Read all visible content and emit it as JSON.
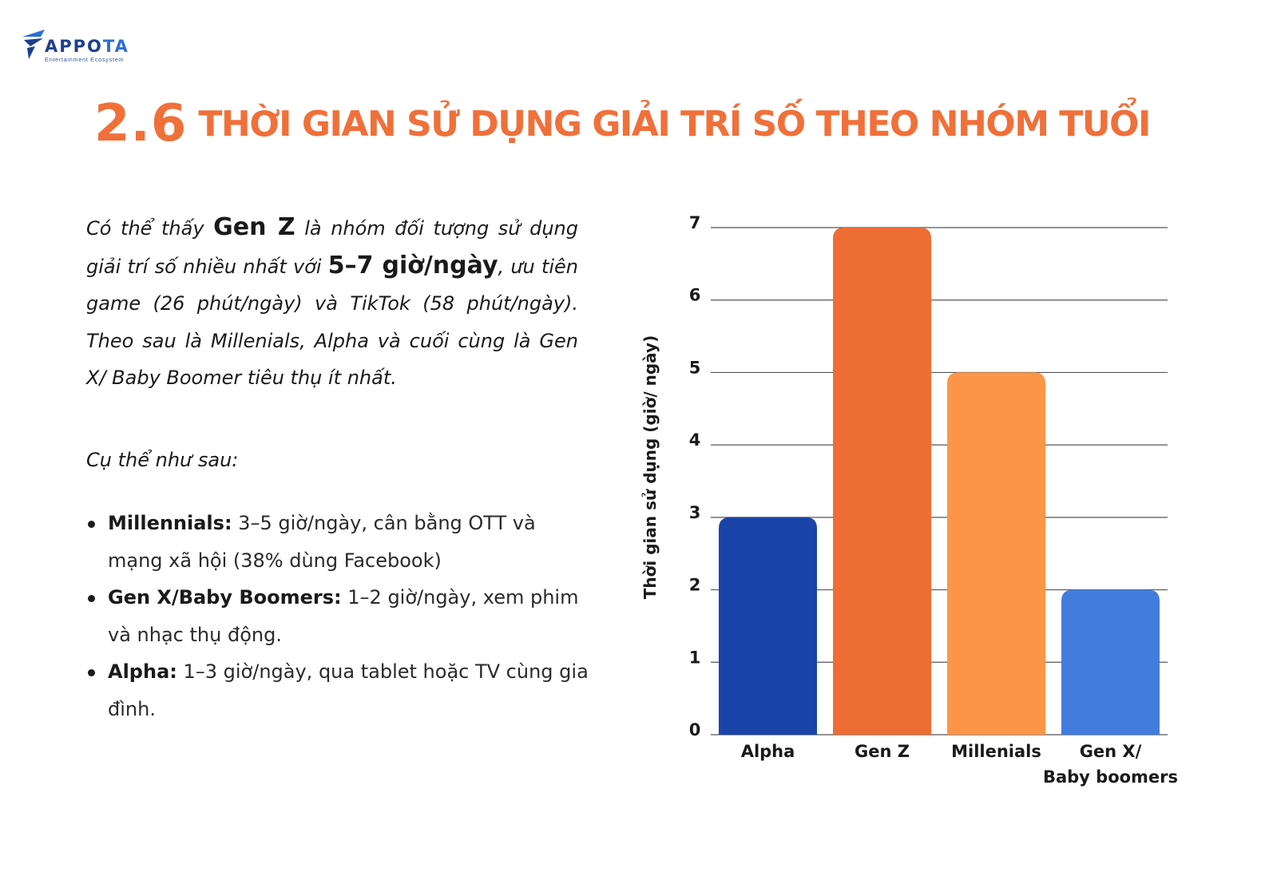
{
  "logo": {
    "wordmark_a": "APPO",
    "wordmark_b": "TA",
    "tagline": "Entertainment Ecosystem",
    "colors": {
      "dark": "#1e3f8f",
      "light": "#2d6fd6"
    }
  },
  "header": {
    "section_number": "2.6",
    "title": "THỜI GIAN SỬ DỤNG GIẢI TRÍ SỐ THEO NHÓM TUỔI",
    "color": "#f0703a"
  },
  "intro": {
    "p1": "Có thể thấy ",
    "gen_z": "Gen Z",
    "p2": " là nhóm đối tượng sử dụng giải trí số nhiều nhất với ",
    "hours": "5–7 giờ/ngày",
    "p3": ", ưu tiên game (26 phút/ngày) và TikTok (58 phút/ngày). Theo sau là Millenials, Alpha và cuối cùng là Gen X/ Baby Boomer tiêu thụ ít nhất."
  },
  "subhead": "Cụ thể như sau:",
  "bullets": [
    {
      "label": "Millennials:",
      "text": " 3–5 giờ/ngày, cân bằng OTT và mạng xã hội (38% dùng Facebook)"
    },
    {
      "label": "Gen X/Baby Boomers:",
      "text": " 1–2 giờ/ngày, xem phim và nhạc thụ động."
    },
    {
      "label": "Alpha:",
      "text": " 1–3 giờ/ngày, qua tablet hoặc TV cùng gia đình."
    }
  ],
  "chart_data": {
    "type": "bar",
    "title": "",
    "xlabel": "",
    "ylabel": "Thời gian sử dụng (giờ/ ngày)",
    "ylim": [
      0,
      7
    ],
    "yticks": [
      "0",
      "1",
      "2",
      "3",
      "4",
      "5",
      "6",
      "7"
    ],
    "grid": true,
    "categories": [
      {
        "lines": [
          "Alpha"
        ]
      },
      {
        "lines": [
          "Gen Z"
        ]
      },
      {
        "lines": [
          "Millenials"
        ]
      },
      {
        "lines": [
          "Gen X/",
          "Baby boomers"
        ]
      }
    ],
    "values": [
      3,
      7,
      5,
      2
    ],
    "colors": [
      "#1a44a8",
      "#ed6d34",
      "#fd9549",
      "#427ddd"
    ],
    "grid_color": "#555555"
  }
}
